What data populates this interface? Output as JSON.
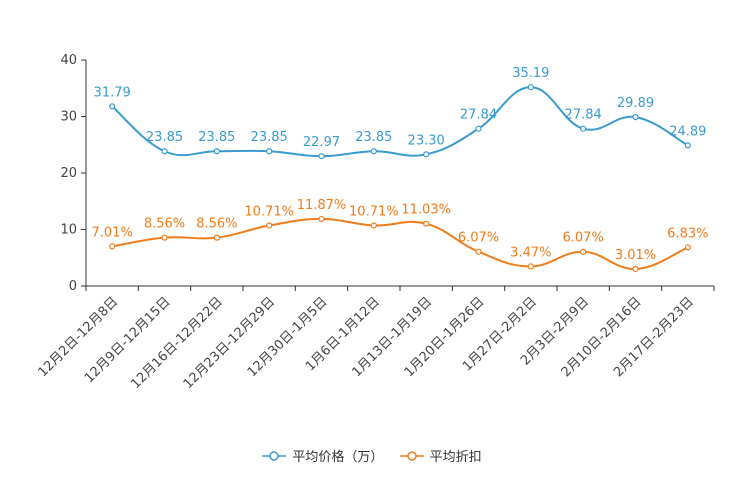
{
  "chart_data": {
    "type": "line",
    "categories": [
      "12月2日-12月8日",
      "12月9日-12月15日",
      "12月16日-12月22日",
      "12月23日-12月29日",
      "12月30日-1月5日",
      "1月6日-1月12日",
      "1月13日-1月19日",
      "1月20日-1月26日",
      "1月27日-2月2日",
      "2月3日-2月9日",
      "2月10日-2月16日",
      "2月17日-2月23日"
    ],
    "ylim": [
      0,
      40
    ],
    "yticks": [
      0,
      10,
      20,
      30,
      40
    ],
    "series": [
      {
        "name": "平均价格（万）",
        "color": "#3a9bd0",
        "values": [
          31.79,
          23.85,
          23.85,
          23.85,
          22.97,
          23.85,
          23.3,
          27.84,
          35.19,
          27.84,
          29.89,
          24.89
        ],
        "labels": [
          "31.79",
          "23.85",
          "23.85",
          "23.85",
          "22.97",
          "23.85",
          "23.30",
          "27.84",
          "35.19",
          "27.84",
          "29.89",
          "24.89"
        ]
      },
      {
        "name": "平均折扣",
        "color": "#f07c1a",
        "values": [
          7.01,
          8.56,
          8.56,
          10.71,
          11.87,
          10.71,
          11.03,
          6.07,
          3.47,
          6.07,
          3.01,
          6.83
        ],
        "labels": [
          "7.01%",
          "8.56%",
          "8.56%",
          "10.71%",
          "11.87%",
          "10.71%",
          "11.03%",
          "6.07%",
          "3.47%",
          "6.07%",
          "3.01%",
          "6.83%"
        ]
      }
    ],
    "legend_position": "bottom-center",
    "grid": false
  }
}
